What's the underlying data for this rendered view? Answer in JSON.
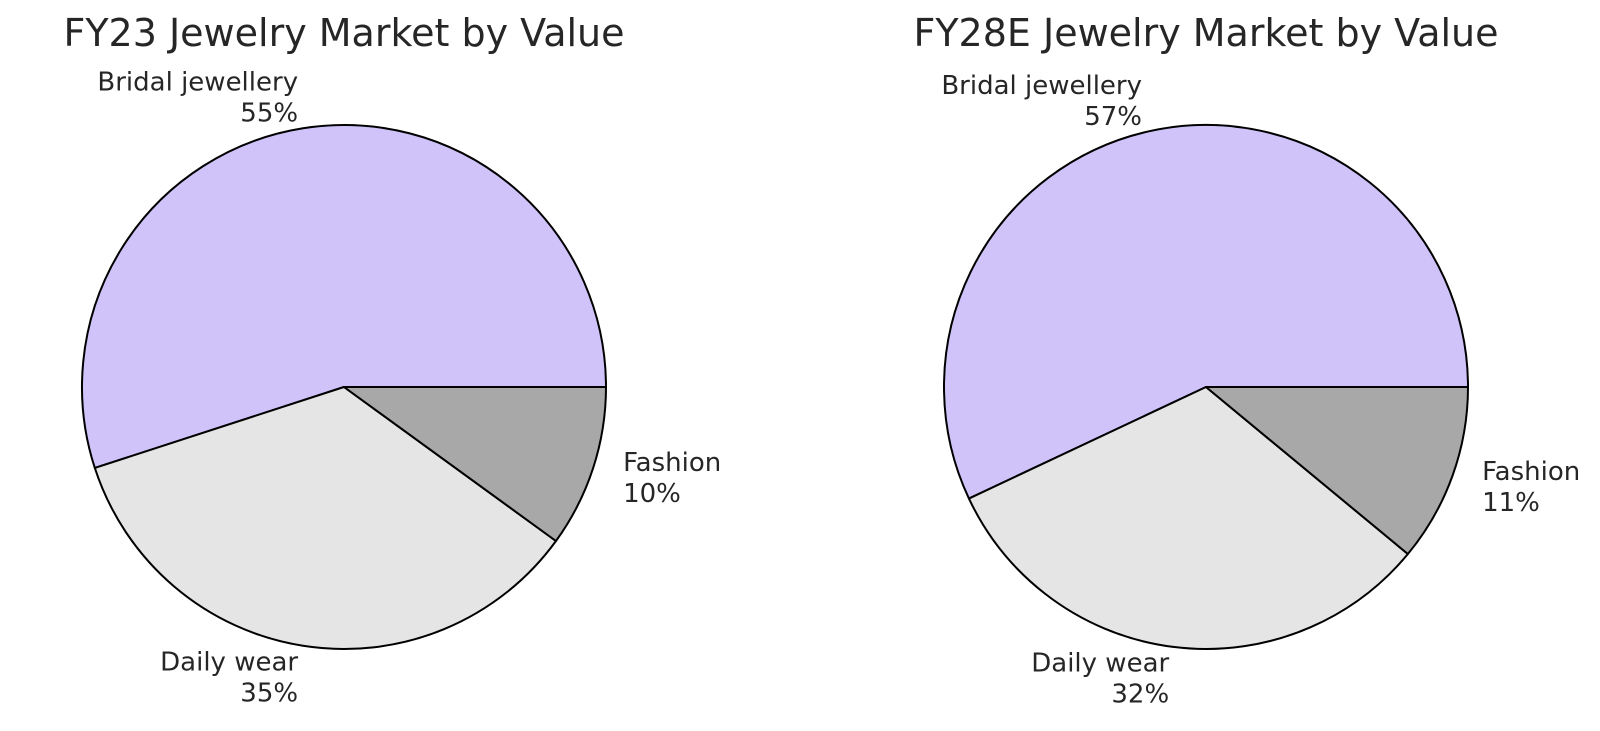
{
  "chart_data": [
    {
      "type": "pie",
      "title": "FY23 Jewelry Market by Value",
      "start_angle_deg": 0,
      "direction": "counterclockwise",
      "slices": [
        {
          "label": "Bridal jewellery",
          "value": 55,
          "value_label": "55%",
          "color": "#cfc3fa",
          "label_align": "right"
        },
        {
          "label": "Daily wear",
          "value": 35,
          "value_label": "35%",
          "color": "#e5e5e5",
          "label_align": "right"
        },
        {
          "label": "Fashion",
          "value": 10,
          "value_label": "10%",
          "color": "#a8a8a8",
          "label_align": "left"
        }
      ]
    },
    {
      "type": "pie",
      "title": "FY28E Jewelry Market by Value",
      "start_angle_deg": 0,
      "direction": "counterclockwise",
      "slices": [
        {
          "label": "Bridal jewellery",
          "value": 57,
          "value_label": "57%",
          "color": "#cfc3fa",
          "label_align": "right"
        },
        {
          "label": "Daily wear",
          "value": 32,
          "value_label": "32%",
          "color": "#e5e5e5",
          "label_align": "right"
        },
        {
          "label": "Fashion",
          "value": 11,
          "value_label": "11%",
          "color": "#a8a8a8",
          "label_align": "left"
        }
      ]
    }
  ]
}
